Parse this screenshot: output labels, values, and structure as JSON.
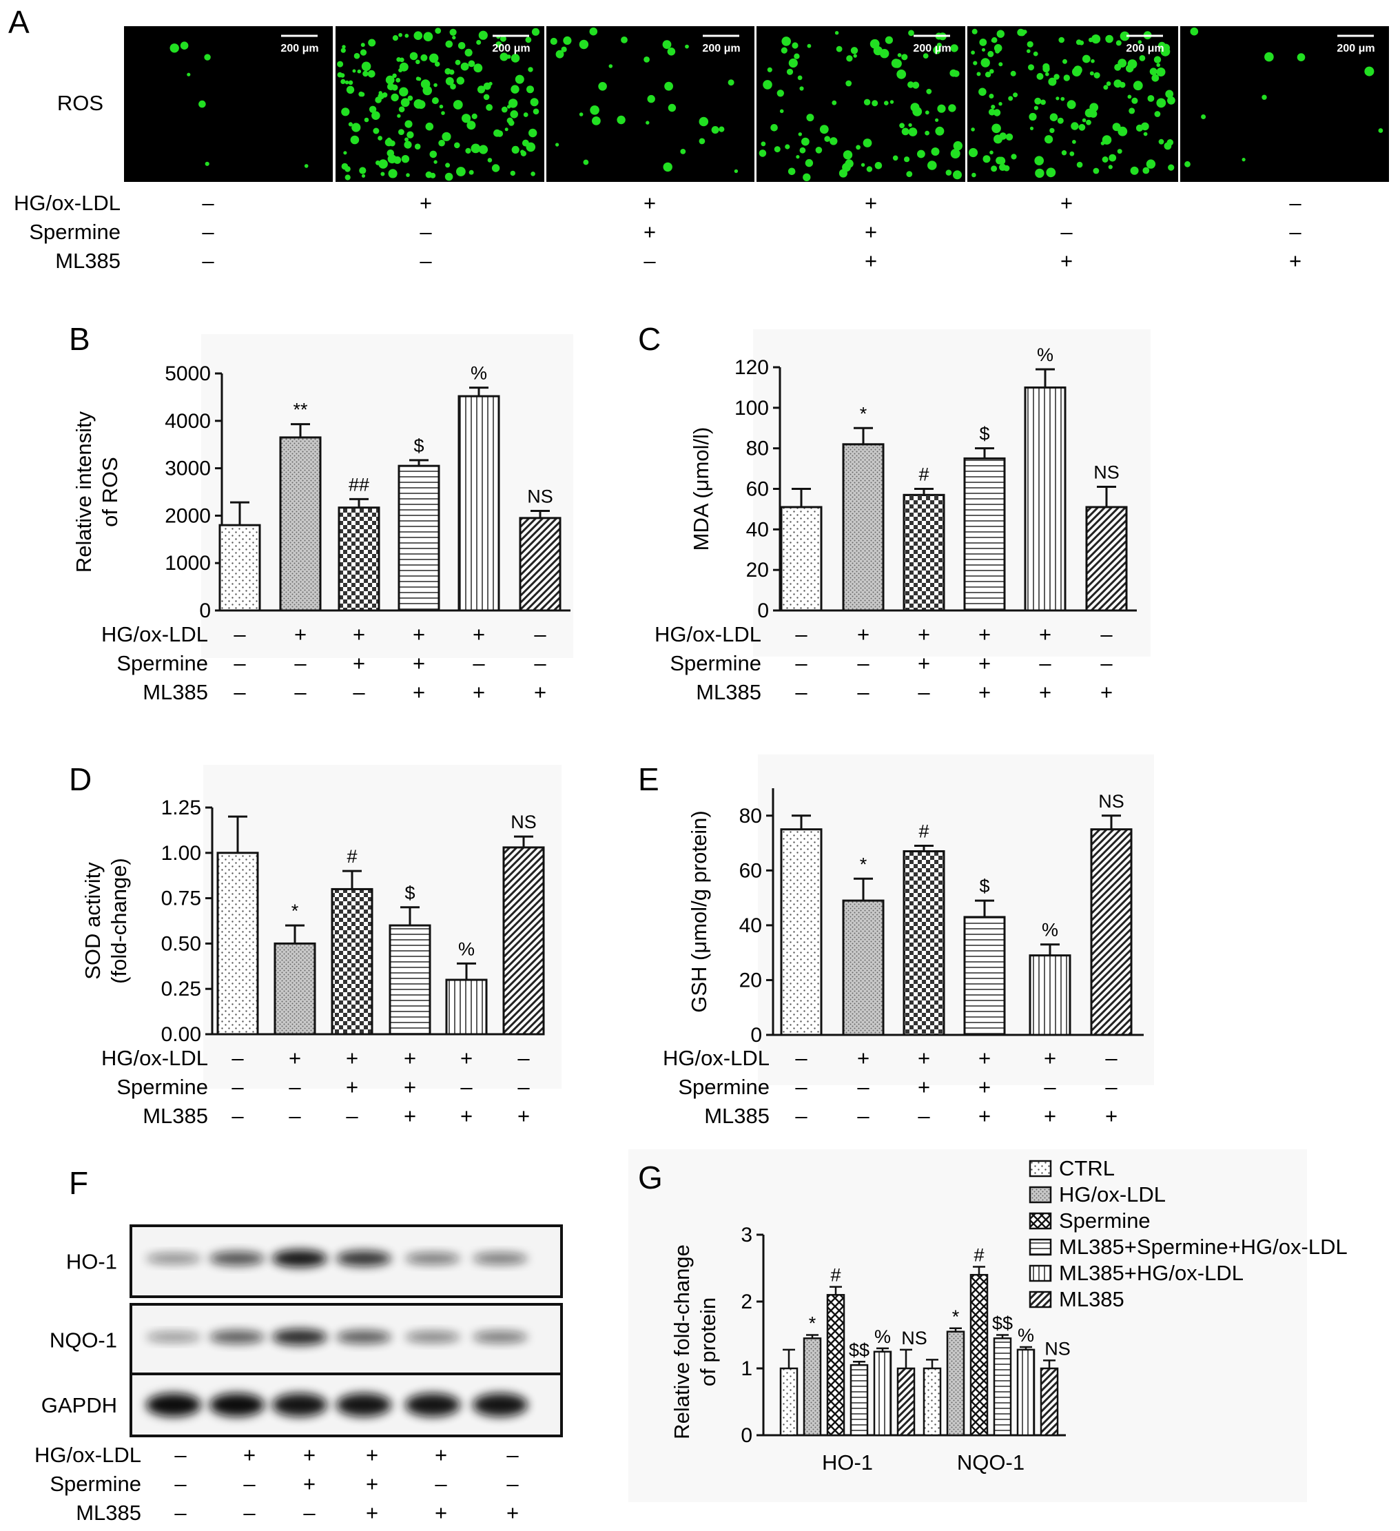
{
  "treatment_labels": [
    "HG/ox-LDL",
    "Spermine",
    "ML385"
  ],
  "treatment_signs": [
    [
      "–",
      "+",
      "+",
      "+",
      "+",
      "–"
    ],
    [
      "–",
      "–",
      "+",
      "+",
      "–",
      "–"
    ],
    [
      "–",
      "–",
      "–",
      "+",
      "+",
      "+"
    ]
  ],
  "panel_a": {
    "label": "A",
    "row_label": "ROS",
    "scale_bar": "200 μm",
    "cell_density": [
      0.04,
      1.0,
      0.18,
      0.55,
      0.85,
      0.05
    ]
  },
  "panel_f": {
    "label": "F",
    "band_labels": [
      "HO-1",
      "NQO-1",
      "GAPDH"
    ],
    "band_intensity": [
      [
        0.35,
        0.65,
        0.95,
        0.8,
        0.45,
        0.45
      ],
      [
        0.3,
        0.6,
        0.85,
        0.6,
        0.4,
        0.45
      ],
      [
        1.0,
        1.0,
        0.95,
        0.95,
        0.95,
        0.95
      ]
    ]
  },
  "chart_data": [
    {
      "panel": "B",
      "type": "bar",
      "ylabel": "Relative intensity\nof ROS",
      "ylim": [
        0,
        5000
      ],
      "yticks": [
        0,
        1000,
        2000,
        3000,
        4000,
        5000
      ],
      "tick_labels": [
        "0",
        "1000",
        "2000",
        "3000",
        "4000",
        "5000"
      ],
      "values": [
        1800,
        3650,
        2170,
        3050,
        4520,
        1950
      ],
      "errors": [
        480,
        280,
        180,
        120,
        180,
        150
      ],
      "significance": [
        "",
        "**",
        "##",
        "$",
        "%",
        "NS"
      ]
    },
    {
      "panel": "C",
      "type": "bar",
      "ylabel": "MDA (μmol/l)",
      "ylim": [
        0,
        120
      ],
      "yticks": [
        0,
        20,
        40,
        60,
        80,
        100,
        120
      ],
      "tick_labels": [
        "0",
        "20",
        "40",
        "60",
        "80",
        "100",
        "120"
      ],
      "values": [
        51,
        82,
        57,
        75,
        110,
        51
      ],
      "errors": [
        9,
        8,
        3,
        5,
        9,
        10
      ],
      "significance": [
        "",
        "*",
        "#",
        "$",
        "%",
        "NS"
      ]
    },
    {
      "panel": "D",
      "type": "bar",
      "ylabel": "SOD activity\n(fold-change)",
      "ylim": [
        0,
        1.25
      ],
      "yticks": [
        0,
        0.25,
        0.5,
        0.75,
        1.0,
        1.25
      ],
      "tick_labels": [
        "0.00",
        "0.25",
        "0.50",
        "0.75",
        "1.00",
        "1.25"
      ],
      "values": [
        1.0,
        0.5,
        0.8,
        0.6,
        0.3,
        1.03
      ],
      "errors": [
        0.2,
        0.1,
        0.1,
        0.1,
        0.09,
        0.06
      ],
      "significance": [
        "",
        "*",
        "#",
        "$",
        "%",
        "NS"
      ]
    },
    {
      "panel": "E",
      "type": "bar",
      "ylabel": "GSH (μmol/g protein)",
      "ylim": [
        0,
        90
      ],
      "yticks": [
        0,
        20,
        40,
        60,
        80
      ],
      "tick_labels": [
        "0",
        "20",
        "40",
        "60",
        "80"
      ],
      "values": [
        75,
        49,
        67,
        43,
        29,
        75
      ],
      "errors": [
        5,
        8,
        2,
        6,
        4,
        5
      ],
      "significance": [
        "",
        "*",
        "#",
        "$",
        "%",
        "NS"
      ]
    },
    {
      "panel": "G",
      "type": "bar",
      "ylabel": "Relative fold-change\nof protein",
      "ylim": [
        0,
        3
      ],
      "yticks": [
        0,
        1,
        2,
        3
      ],
      "tick_labels": [
        "0",
        "1",
        "2",
        "3"
      ],
      "categories": [
        "HO-1",
        "NQO-1"
      ],
      "series": [
        {
          "name": "CTRL",
          "values": [
            1.0,
            1.0
          ],
          "errors": [
            0.28,
            0.13
          ]
        },
        {
          "name": "HG/ox-LDL",
          "values": [
            1.45,
            1.55
          ],
          "errors": [
            0.05,
            0.05
          ]
        },
        {
          "name": "Spermine",
          "values": [
            2.1,
            2.4
          ],
          "errors": [
            0.12,
            0.12
          ]
        },
        {
          "name": "ML385+Spermine+HG/ox-LDL",
          "values": [
            1.05,
            1.45
          ],
          "errors": [
            0.05,
            0.05
          ]
        },
        {
          "name": "ML385+HG/ox-LDL",
          "values": [
            1.25,
            1.28
          ],
          "errors": [
            0.05,
            0.04
          ]
        },
        {
          "name": "ML385",
          "values": [
            1.0,
            1.0
          ],
          "errors": [
            0.28,
            0.12
          ]
        }
      ],
      "significance": [
        [
          "",
          "*",
          "#",
          "$$",
          "%",
          "NS"
        ],
        [
          "",
          "*",
          "#",
          "$$",
          "%",
          "NS"
        ]
      ]
    }
  ]
}
